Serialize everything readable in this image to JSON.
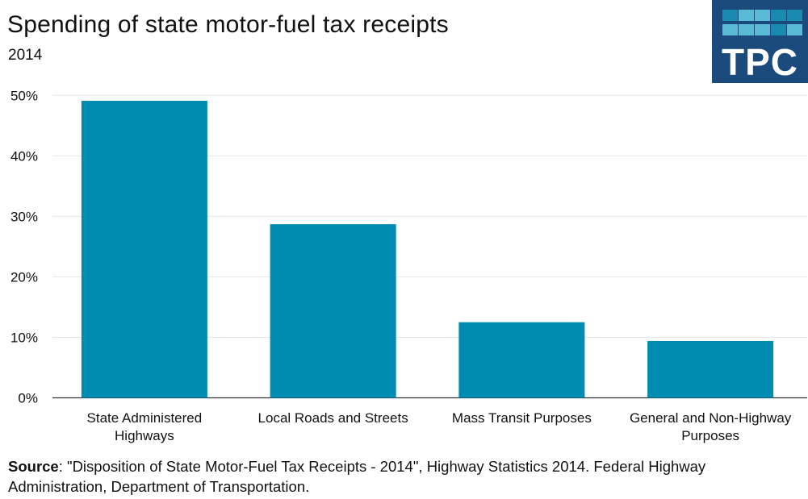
{
  "chart_data": {
    "type": "bar",
    "title": "Spending of state motor-fuel tax receipts",
    "subtitle": "2014",
    "categories": [
      "State Administered\nHighways",
      "Local Roads and Streets",
      "Mass Transit Purposes",
      "General and Non-Highway\nPurposes"
    ],
    "values": [
      49.1,
      28.7,
      12.5,
      9.4
    ],
    "ylim": [
      0,
      50
    ],
    "yticks": [
      "0%",
      "10%",
      "20%",
      "30%",
      "40%",
      "50%"
    ],
    "ytick_values": [
      0,
      10,
      20,
      30,
      40,
      50
    ],
    "xlabel": "",
    "ylabel": "",
    "grid": true,
    "bar_color": "#008bb0"
  },
  "source": {
    "label": "Source",
    "text": ": \"Disposition of State Motor-Fuel Tax Receipts - 2014\", Highway Statistics 2014. Federal Highway Administration, Department of Transportation."
  },
  "logo": {
    "text": "TPC",
    "background": "#1b4a7c"
  }
}
